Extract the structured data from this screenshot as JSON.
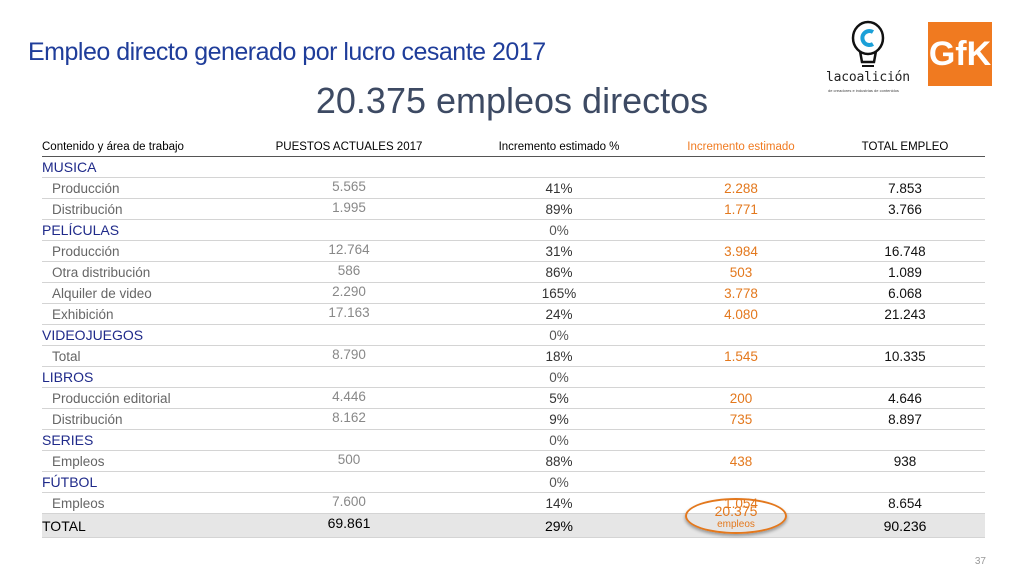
{
  "title": "Empleo directo generado por lucro cesante 2017",
  "headline": "20.375 empleos directos",
  "logos": {
    "coalicion_text": "lacoalición",
    "coalicion_sub": "de creadores e industrias de contenidos",
    "gfk_text": "GfK",
    "gfk_color": "#f07a20"
  },
  "table": {
    "headers": [
      "Contenido y área de trabajo",
      "PUESTOS ACTUALES 2017",
      "Incremento estimado %",
      "Incremento estimado",
      "TOTAL EMPLEO"
    ],
    "rows": [
      {
        "type": "cat",
        "name": "MUSICA",
        "cur": "",
        "pct": "",
        "inc": "",
        "tot": ""
      },
      {
        "type": "item",
        "name": "Producción",
        "cur": "5.565",
        "pct": "41%",
        "inc": "2.288",
        "tot": "7.853"
      },
      {
        "type": "item",
        "name": "Distribución",
        "cur": "1.995",
        "pct": "89%",
        "inc": "1.771",
        "tot": "3.766"
      },
      {
        "type": "cat",
        "name": "PELÍCULAS",
        "cur": "",
        "pct": "0%",
        "inc": "",
        "tot": ""
      },
      {
        "type": "item",
        "name": "Producción",
        "cur": "12.764",
        "pct": "31%",
        "inc": "3.984",
        "tot": "16.748"
      },
      {
        "type": "item",
        "name": "Otra distribución",
        "cur": "586",
        "pct": "86%",
        "inc": "503",
        "tot": "1.089"
      },
      {
        "type": "item",
        "name": "Alquiler de video",
        "cur": "2.290",
        "pct": "165%",
        "inc": "3.778",
        "tot": "6.068"
      },
      {
        "type": "item",
        "name": "Exhibición",
        "cur": "17.163",
        "pct": "24%",
        "inc": "4.080",
        "tot": "21.243"
      },
      {
        "type": "cat",
        "name": "VIDEOJUEGOS",
        "cur": "",
        "pct": "0%",
        "inc": "",
        "tot": ""
      },
      {
        "type": "item",
        "name": "Total",
        "cur": "8.790",
        "pct": "18%",
        "inc": "1.545",
        "tot": "10.335"
      },
      {
        "type": "cat",
        "name": "LIBROS",
        "cur": "",
        "pct": "0%",
        "inc": "",
        "tot": ""
      },
      {
        "type": "item",
        "name": "Producción editorial",
        "cur": "4.446",
        "pct": "5%",
        "inc": "200",
        "tot": "4.646"
      },
      {
        "type": "item",
        "name": "Distribución",
        "cur": "8.162",
        "pct": "9%",
        "inc": "735",
        "tot": "8.897"
      },
      {
        "type": "cat",
        "name": "SERIES",
        "cur": "",
        "pct": "0%",
        "inc": "",
        "tot": ""
      },
      {
        "type": "item",
        "name": "Empleos",
        "cur": "500",
        "pct": "88%",
        "inc": "438",
        "tot": "938"
      },
      {
        "type": "cat",
        "name": "FÚTBOL",
        "cur": "",
        "pct": "0%",
        "inc": "",
        "tot": ""
      },
      {
        "type": "item",
        "name": "Empleos",
        "cur": "7.600",
        "pct": "14%",
        "inc": "1.054",
        "tot": "8.654"
      },
      {
        "type": "total",
        "name": "TOTAL",
        "cur": "69.861",
        "pct": "29%",
        "inc": "",
        "tot": "90.236"
      }
    ]
  },
  "highlight": {
    "value": "20.375",
    "unit": "empleos",
    "color": "#e3781d"
  },
  "page_number": "37"
}
